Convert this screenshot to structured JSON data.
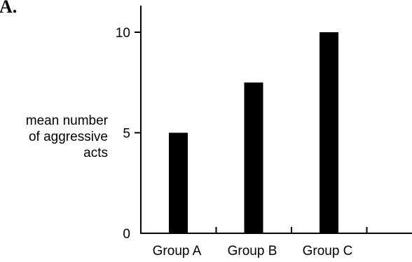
{
  "panel_label": "A.",
  "chart_data": {
    "type": "bar",
    "title": "",
    "xlabel": "",
    "ylabel": "mean number of aggressive acts",
    "ylabel_lines": [
      "mean number",
      "of aggressive",
      "acts"
    ],
    "categories": [
      "Group A",
      "Group B",
      "Group C"
    ],
    "values": [
      5,
      7.5,
      10
    ],
    "ylim": [
      0,
      11.5
    ],
    "yticks": [
      0,
      5,
      10
    ],
    "ytick_labels": [
      "0",
      "5",
      "10"
    ],
    "bar_color": "#000000",
    "grid": false,
    "legend": "none"
  }
}
